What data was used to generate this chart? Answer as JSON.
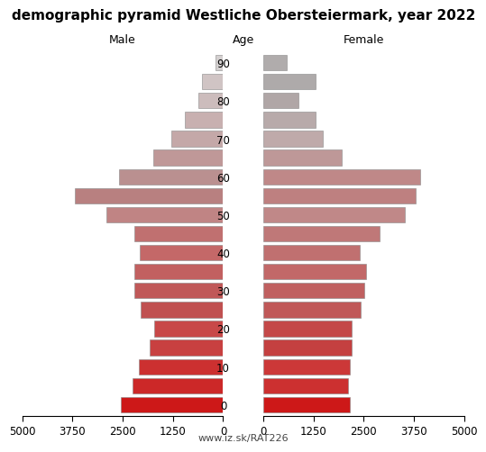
{
  "title": "demographic pyramid Westliche Obersteiermark, year 2022",
  "subtitle": "www.iz.sk/RAT226",
  "male_label": "Male",
  "female_label": "Female",
  "age_label": "Age",
  "age_groups": [
    0,
    5,
    10,
    15,
    20,
    25,
    30,
    35,
    40,
    45,
    50,
    55,
    60,
    65,
    70,
    75,
    80,
    85,
    90
  ],
  "age_tick_labels": [
    "0",
    "",
    "10",
    "",
    "20",
    "",
    "30",
    "",
    "40",
    "",
    "50",
    "",
    "60",
    "",
    "70",
    "",
    "80",
    "",
    "90"
  ],
  "male_values": [
    2550,
    2250,
    2100,
    1820,
    1720,
    2050,
    2200,
    2200,
    2080,
    2200,
    2900,
    3700,
    2600,
    1750,
    1280,
    950,
    620,
    530,
    190
  ],
  "female_values": [
    2150,
    2100,
    2150,
    2200,
    2200,
    2420,
    2520,
    2560,
    2400,
    2900,
    3520,
    3800,
    3900,
    1950,
    1480,
    1300,
    880,
    1300,
    580
  ],
  "xlim": 5000,
  "bar_height": 0.82,
  "male_colors": [
    "#cd1818",
    "#cc2828",
    "#cc3030",
    "#c84040",
    "#c84848",
    "#c05050",
    "#c05858",
    "#c26060",
    "#c46868",
    "#c07070",
    "#c08484",
    "#b88080",
    "#ba9090",
    "#bf9898",
    "#c4a8a8",
    "#c8b0b0",
    "#ccbcbc",
    "#d0c4c4",
    "#d4d0d0"
  ],
  "female_colors": [
    "#cd1818",
    "#cc3030",
    "#cc3838",
    "#c44040",
    "#c44848",
    "#c05858",
    "#c06060",
    "#c26868",
    "#c07070",
    "#bf7878",
    "#c08888",
    "#be8080",
    "#bf8888",
    "#be9898",
    "#bfaaaa",
    "#b8aaaa",
    "#b0a6a6",
    "#aeaaaa",
    "#b0acac"
  ],
  "bg_color": "#ffffff",
  "title_fontsize": 11,
  "label_fontsize": 9,
  "tick_fontsize": 8.5
}
